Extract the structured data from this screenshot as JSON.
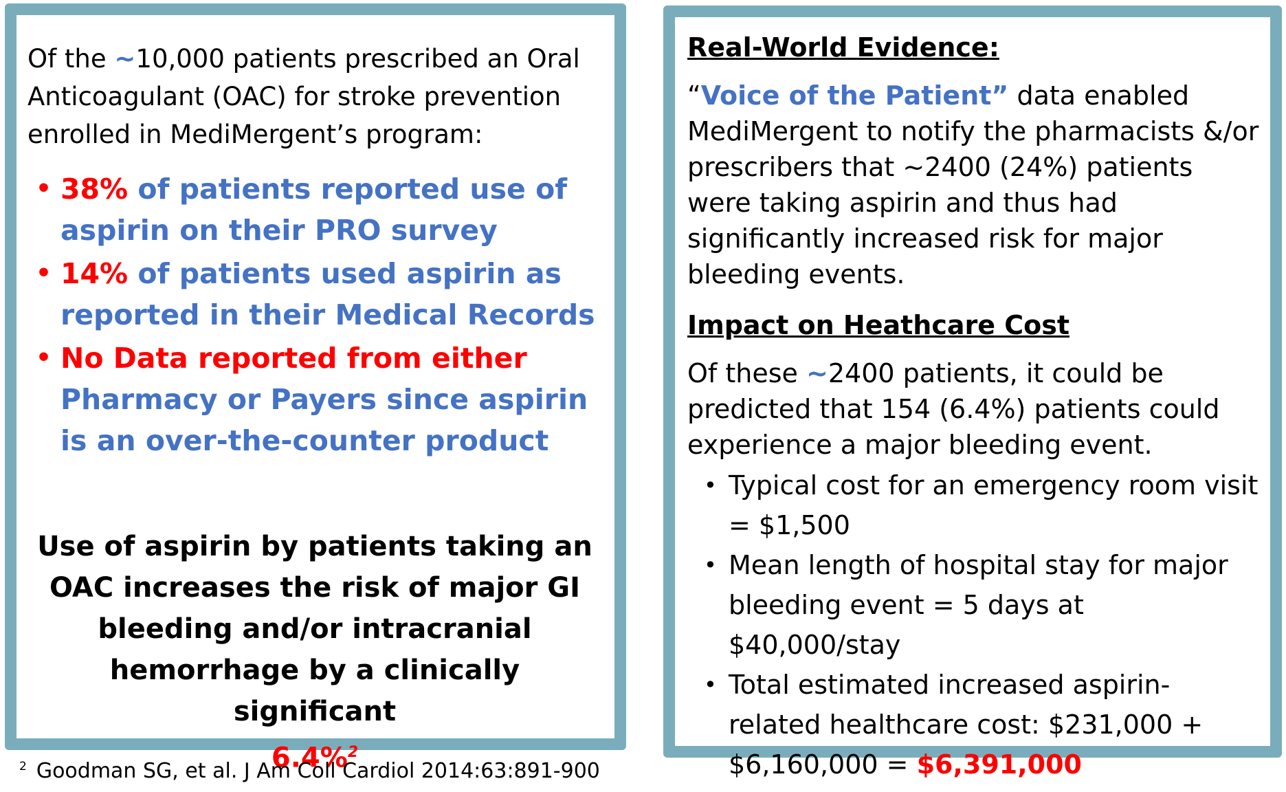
{
  "left": {
    "intro": {
      "pre": "Of the ",
      "tilde": "~",
      "post": "10,000 patients prescribed an Oral Anticoagulant (OAC) for stroke prevention enrolled in MediMergent’s program:"
    },
    "bullets": [
      {
        "red": "38%",
        "blue": " of patients reported use of aspirin on their PRO survey"
      },
      {
        "red": "14%",
        "blue": " of patients used aspirin as reported in their Medical Records"
      },
      {
        "red": "No Data reported from either",
        "blue": " Pharmacy or Payers since aspirin is an over-the-counter product"
      }
    ],
    "conclusion": {
      "text": "Use of aspirin by patients taking an OAC increases the risk of major GI bleeding and/or intracranial hemorrhage by a clinically significant",
      "value": "6.4%",
      "ref": "2"
    }
  },
  "footnote": {
    "ref": "2",
    "text": "Goodman SG, et al.  J Am Coll Cardiol 2014:63:891-900"
  },
  "right": {
    "heading1": "Real-World Evidence:",
    "para1": {
      "open_quote": "“",
      "highlight": "Voice of the Patient”",
      "rest": " data enabled MediMergent to notify the pharmacists &/or prescribers that ~2400 (24%) patients were taking aspirin and thus had significantly increased risk for major bleeding events."
    },
    "heading2": "Impact on Heathcare Cost",
    "para2": {
      "pre": "Of these ",
      "tilde": "~",
      "post": "2400 patients, it could be predicted that 154 (6.4%) patients could experience a major bleeding event."
    },
    "bullets": [
      {
        "text": "Typical cost for an emergency room visit = $1,500"
      },
      {
        "text": "Mean length of hospital stay for major bleeding event = 5 days at $40,000/stay"
      },
      {
        "text": "Total estimated increased aspirin-related healthcare cost: $231,000 + $6,160,000 = ",
        "total": "$6,391,000"
      }
    ]
  }
}
